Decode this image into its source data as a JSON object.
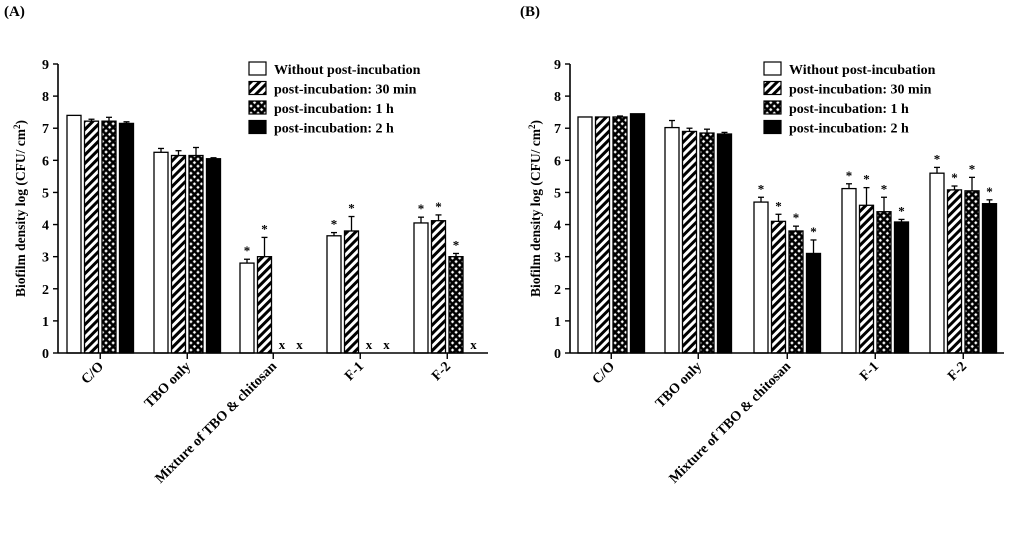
{
  "chart_data": [
    {
      "type": "bar",
      "panel_label": "(A)",
      "ylabel": "Biofilm density log (CFU/ cm²)",
      "ylabel_main": "Biofilm density log (CFU/ cm",
      "ylabel_sup": "2",
      "ylabel_close": ")",
      "ylim": [
        0,
        9
      ],
      "yticks": [
        "0",
        "1",
        "2",
        "3",
        "4",
        "5",
        "6",
        "7",
        "8",
        "9"
      ],
      "categories": [
        "C/O",
        "TBO only",
        "Mixture of TBO & chitosan",
        "F-1",
        "F-2"
      ],
      "legend": "top-right",
      "series": [
        {
          "name": "Without post-incubation",
          "style": "white",
          "values": [
            7.4,
            6.25,
            2.8,
            3.65,
            4.05
          ],
          "errors": [
            0.0,
            0.12,
            0.12,
            0.1,
            0.18
          ],
          "marks": [
            "",
            "",
            "*",
            "*",
            "*"
          ]
        },
        {
          "name": "post-incubation: 30 min",
          "style": "hatch",
          "values": [
            7.22,
            6.15,
            3.0,
            3.8,
            4.12
          ],
          "errors": [
            0.06,
            0.15,
            0.6,
            0.45,
            0.18
          ],
          "marks": [
            "",
            "",
            "*",
            "*",
            "*"
          ]
        },
        {
          "name": "post-incubation: 1 h",
          "style": "cross",
          "values": [
            7.22,
            6.15,
            null,
            null,
            3.0
          ],
          "errors": [
            0.12,
            0.25,
            0,
            0,
            0.1
          ],
          "marks": [
            "",
            "",
            "x",
            "x",
            "*"
          ]
        },
        {
          "name": "post-incubation: 2 h",
          "style": "black",
          "values": [
            7.15,
            6.05,
            null,
            null,
            null
          ],
          "errors": [
            0.05,
            0.03,
            0,
            0,
            0
          ],
          "marks": [
            "",
            "",
            "x",
            "x",
            "x"
          ]
        }
      ]
    },
    {
      "type": "bar",
      "panel_label": "(B)",
      "ylabel": "Biofilm density log (CFU/ cm²)",
      "ylabel_main": "Biofilm density log (CFU/ cm",
      "ylabel_sup": "2",
      "ylabel_close": ")",
      "ylim": [
        0,
        9
      ],
      "yticks": [
        "0",
        "1",
        "2",
        "3",
        "4",
        "5",
        "6",
        "7",
        "8",
        "9"
      ],
      "categories": [
        "C/O",
        "TBO only",
        "Mixture of TBO & chitosan",
        "F-1",
        "F-2"
      ],
      "legend": "top-right",
      "series": [
        {
          "name": "Without post-incubation",
          "style": "white",
          "values": [
            7.35,
            7.02,
            4.7,
            5.12,
            5.6
          ],
          "errors": [
            0.0,
            0.22,
            0.15,
            0.15,
            0.18
          ],
          "marks": [
            "",
            "",
            "*",
            "*",
            "*"
          ]
        },
        {
          "name": "post-incubation: 30 min",
          "style": "hatch",
          "values": [
            7.35,
            6.9,
            4.1,
            4.6,
            5.08
          ],
          "errors": [
            0.0,
            0.1,
            0.22,
            0.55,
            0.12
          ],
          "marks": [
            "",
            "",
            "*",
            "*",
            "*"
          ]
        },
        {
          "name": "post-incubation: 1 h",
          "style": "cross",
          "values": [
            7.35,
            6.85,
            3.8,
            4.4,
            5.05
          ],
          "errors": [
            0.03,
            0.12,
            0.15,
            0.45,
            0.42
          ],
          "marks": [
            "",
            "",
            "*",
            "*",
            "*"
          ]
        },
        {
          "name": "post-incubation: 2 h",
          "style": "black",
          "values": [
            7.45,
            6.82,
            3.1,
            4.08,
            4.65
          ],
          "errors": [
            0.0,
            0.05,
            0.42,
            0.08,
            0.12
          ],
          "marks": [
            "",
            "",
            "*",
            "*",
            "*"
          ]
        }
      ]
    }
  ]
}
